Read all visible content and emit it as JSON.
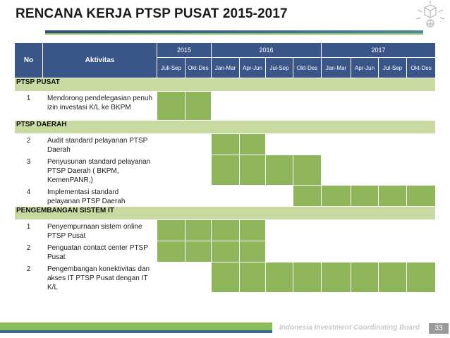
{
  "title": "RENCANA KERJA PTSP PUSAT 2015-2017",
  "header": {
    "no": "No",
    "aktivitas": "Aktivitas",
    "years": [
      "2015",
      "2016",
      "2017"
    ],
    "periods": [
      "Juli-Sep",
      "Okt-Des",
      "Jan-Mar",
      "Apr-Jun",
      "Jul-Sep",
      "Okt-Des",
      "Jan-Mar",
      "Apr-Jun",
      "Jul-Sep",
      "Okt-Des"
    ]
  },
  "sections": [
    {
      "name": "PTSP PUSAT",
      "rows": [
        {
          "no": "1",
          "text": "Mendorong pendelegasian penuh izin investasi K/L ke BKPM",
          "active": [
            1,
            1,
            0,
            0,
            0,
            0,
            0,
            0,
            0,
            0
          ]
        }
      ]
    },
    {
      "name": "PTSP DAERAH",
      "rows": [
        {
          "no": "2",
          "text": "Audit standard pelayanan PTSP Daerah",
          "active": [
            0,
            0,
            1,
            1,
            0,
            0,
            0,
            0,
            0,
            0
          ]
        },
        {
          "no": "3",
          "text": "Penyusunan standard pelayanan PTSP Daerah ( BKPM, KemenPANR,)",
          "active": [
            0,
            0,
            1,
            1,
            1,
            1,
            0,
            0,
            0,
            0
          ]
        },
        {
          "no": "4",
          "text": "Implementasi standard pelayanan PTSP Daerah",
          "active": [
            0,
            0,
            0,
            0,
            0,
            1,
            1,
            1,
            1,
            1
          ]
        }
      ]
    },
    {
      "name": "PENGEMBANGAN SISTEM IT",
      "rows": [
        {
          "no": "1",
          "text": "Penyempurnaan sistem online PTSP Pusat",
          "active": [
            1,
            1,
            1,
            1,
            0,
            0,
            0,
            0,
            0,
            0
          ]
        },
        {
          "no": "2",
          "text": "Penguatan contact center PTSP Pusat",
          "active": [
            1,
            1,
            1,
            1,
            0,
            0,
            0,
            0,
            0,
            0
          ]
        },
        {
          "no": "2",
          "text": "Pengembangan konektivitas dan akses IT PTSP Pusat dengan IT K/L",
          "active": [
            0,
            0,
            1,
            1,
            1,
            1,
            1,
            1,
            1,
            1
          ]
        }
      ]
    }
  ],
  "footer": {
    "organization": "Indonesia Investment Coordinating Board",
    "page": "33"
  },
  "colors": {
    "header_bg": "#3a5688",
    "section_bg": "#c8daa0",
    "active_cell": "#8fb55a",
    "accent_green": "#8bbd5b",
    "accent_blue": "#3a6a8f"
  },
  "icons": {
    "logo": "bkpm-logo-icon"
  }
}
